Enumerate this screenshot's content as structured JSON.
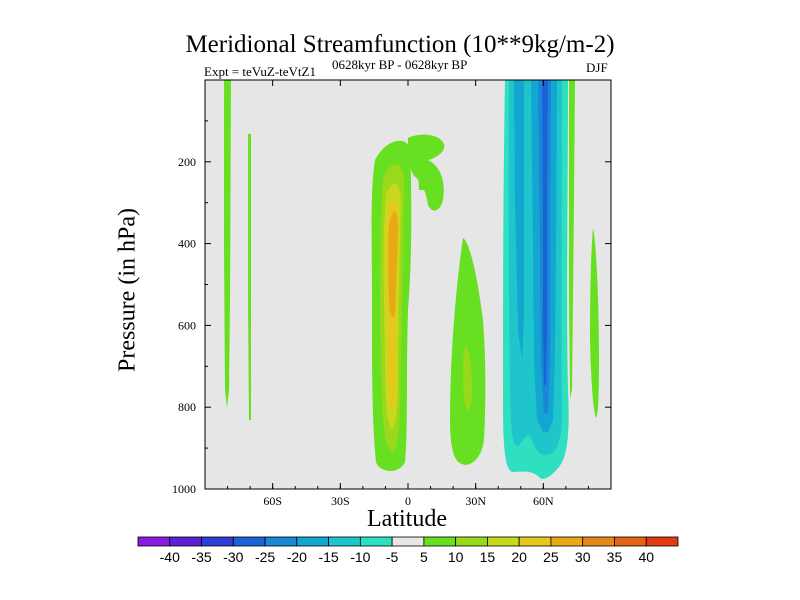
{
  "chart_data": {
    "type": "heatmap",
    "title": "Meridional Streamfunction (10**9kg/m-2)",
    "subtitle_left": "Expt = teVuZ-teVtZ1",
    "subtitle_center": "0628kyr BP - 0628kyr BP",
    "subtitle_right": "DJF",
    "xlabel": "Latitude",
    "ylabel": "Pressure (in hPa)",
    "x_ticks": [
      {
        "value": -60,
        "label": "60S"
      },
      {
        "value": -30,
        "label": "30S"
      },
      {
        "value": 0,
        "label": "0"
      },
      {
        "value": 30,
        "label": "30N"
      },
      {
        "value": 60,
        "label": "60N"
      }
    ],
    "y_ticks": [
      200,
      400,
      600,
      800,
      1000
    ],
    "xlim": [
      -90,
      90
    ],
    "ylim": [
      1000,
      0
    ],
    "background_color": "#e6e6e6",
    "colorbar": {
      "levels": [
        -40,
        -35,
        -30,
        -25,
        -20,
        -15,
        -10,
        -5,
        5,
        10,
        15,
        20,
        25,
        30,
        35,
        40
      ],
      "colors": [
        "#8a1ce0",
        "#5a22d4",
        "#2e3fd6",
        "#1b62d8",
        "#1a86d6",
        "#13a6d1",
        "#1ec6cc",
        "#2fe0c0",
        "#e6e6e6",
        "#66e021",
        "#99d81a",
        "#c8d81c",
        "#e6c81c",
        "#e8a818",
        "#e68818",
        "#e46414",
        "#e03c10"
      ]
    },
    "features": [
      {
        "name": "Tropical positive cell",
        "lat_range": [
          -20,
          0
        ],
        "p_range": [
          140,
          970
        ],
        "peak": 25
      },
      {
        "name": "Equatorial upper branch",
        "lat_range": [
          0,
          18
        ],
        "p_range": [
          130,
          280
        ],
        "peak": 5
      },
      {
        "name": "Subtropical positive cell",
        "lat_range": [
          22,
          36
        ],
        "p_range": [
          350,
          935
        ],
        "peak": 15
      },
      {
        "name": "Northern negative cell",
        "lat_range": [
          42,
          72
        ],
        "p_range": [
          0,
          980
        ],
        "peak": -25
      },
      {
        "name": "High-latitude thin band",
        "lat_range": [
          76,
          80
        ],
        "p_range": [
          0,
          950
        ],
        "peak": 5
      },
      {
        "name": "Polar northern band",
        "lat_range": [
          84,
          86
        ],
        "p_range": [
          330,
          820
        ],
        "peak": 5
      },
      {
        "name": "Southern polar band",
        "lat_range": [
          -80,
          -78
        ],
        "p_range": [
          0,
          800
        ],
        "peak": 5
      },
      {
        "name": "Southern subpolar band",
        "lat_range": [
          -71,
          -70
        ],
        "p_range": [
          130,
          830
        ],
        "peak": 5
      }
    ]
  }
}
